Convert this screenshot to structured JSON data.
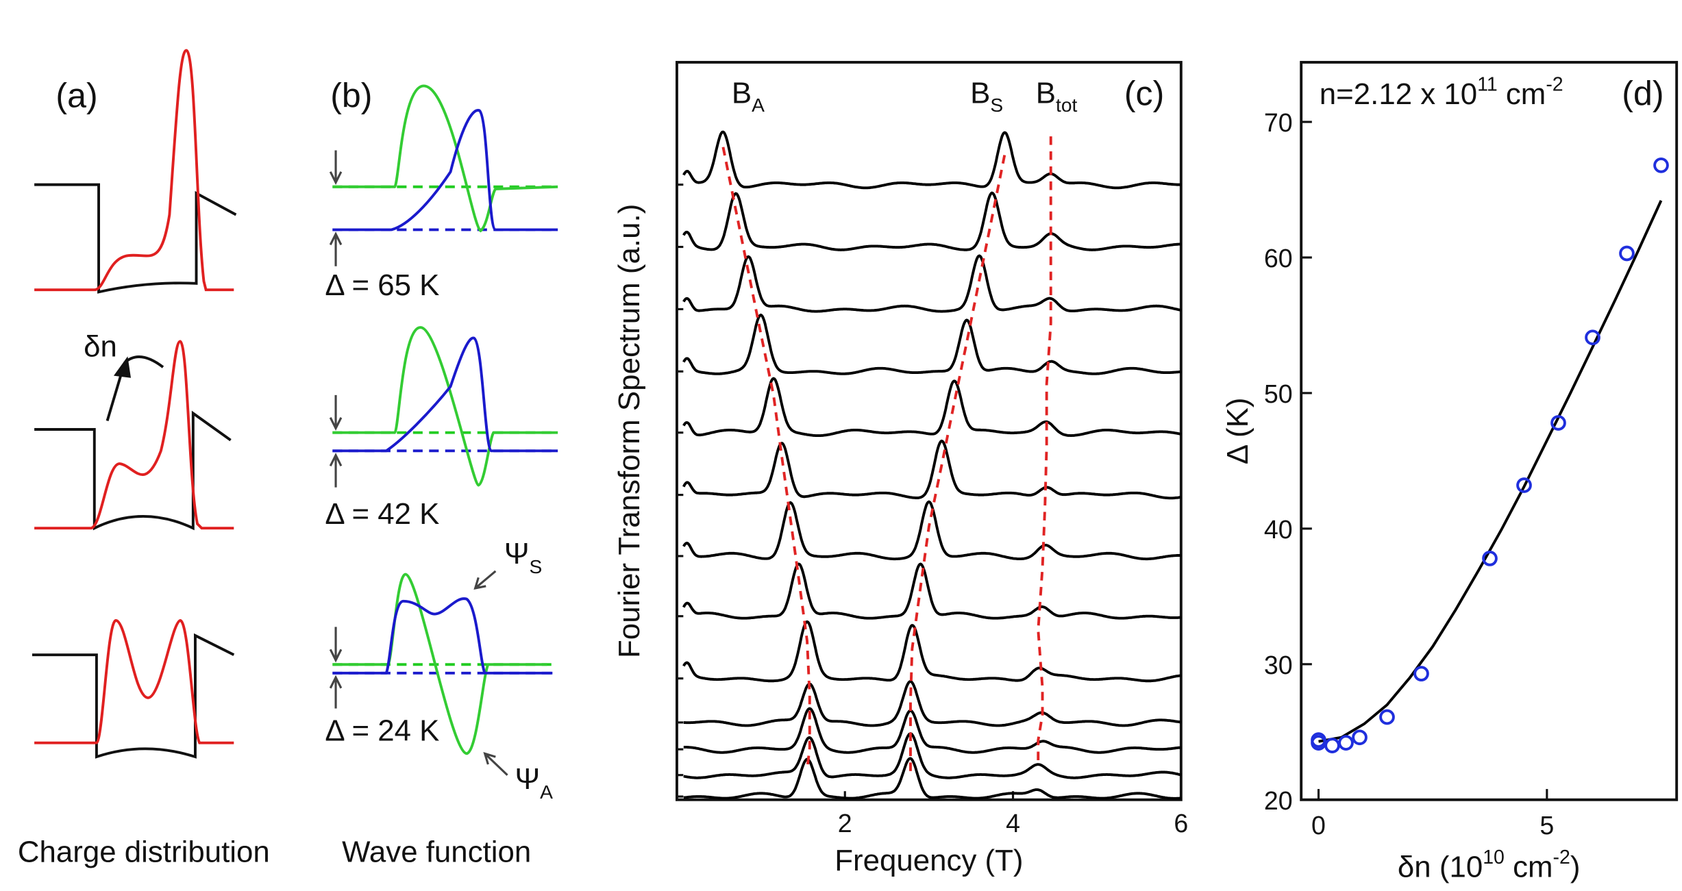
{
  "panel_a": {
    "label": "(a)",
    "caption": "Charge distribution",
    "annotation": "δn"
  },
  "panel_b": {
    "label": "(b)",
    "caption": "Wave function",
    "gaps": [
      "Δ = 65 K",
      "Δ = 42 K",
      "Δ = 24 K"
    ],
    "psi_s": {
      "text": "Ψ",
      "sub": "S"
    },
    "psi_a": {
      "text": "Ψ",
      "sub": "A"
    }
  },
  "chart_data": [
    {
      "type": "spectra",
      "panel_label": "(c)",
      "xlabel": "Frequency (T)",
      "ylabel": "Fourier Transform Spectrum (a.u.)",
      "xlim": [
        0,
        6
      ],
      "xticks": [
        2,
        4,
        6
      ],
      "trace_color": "#000000",
      "series": [
        {
          "name": "B",
          "sub": "A",
          "color": "#e02424",
          "values": [
            0.55,
            0.7,
            0.85,
            1.0,
            1.15,
            1.25,
            1.35,
            1.45,
            1.55,
            1.58,
            1.58,
            1.58,
            1.55
          ]
        },
        {
          "name": "B",
          "sub": "S",
          "color": "#e02424",
          "values": [
            3.9,
            3.75,
            3.6,
            3.45,
            3.3,
            3.15,
            3.0,
            2.9,
            2.8,
            2.78,
            2.78,
            2.78,
            2.78
          ]
        },
        {
          "name": "B",
          "sub": "tot",
          "color": "#e02424",
          "values": [
            4.45,
            4.45,
            4.45,
            4.45,
            4.4,
            4.4,
            4.38,
            4.35,
            4.3,
            4.35,
            4.35,
            4.3,
            4.3
          ]
        }
      ]
    },
    {
      "type": "scatter",
      "panel_label": "(d)",
      "title": [
        {
          "text": "n=2.12 x 10"
        },
        {
          "sup": "11"
        },
        {
          "text": " cm"
        },
        {
          "sup": "-2"
        }
      ],
      "xlabel": [
        {
          "text": "δn (10"
        },
        {
          "sup": "10"
        },
        {
          "text": " cm"
        },
        {
          "sup": "-2"
        },
        {
          "text": ")"
        }
      ],
      "ylabel": "Δ (K)",
      "xlim": [
        -0.38,
        7.84
      ],
      "ylim": [
        20,
        74.4
      ],
      "xticks": [
        0,
        5
      ],
      "yticks": [
        20,
        30,
        40,
        50,
        60,
        70
      ],
      "color": "#1f2fdd",
      "x": [
        0,
        0,
        0.3,
        0.6,
        0.9,
        1.5,
        2.25,
        3.75,
        4.5,
        5.25,
        6.0,
        6.75,
        7.5
      ],
      "values": [
        24.4,
        24.2,
        24.0,
        24.2,
        24.6,
        26.1,
        29.3,
        37.8,
        43.2,
        47.8,
        54.1,
        60.3,
        66.8
      ],
      "fit": {
        "color": "#000000",
        "x": [
          0,
          0.5,
          1,
          1.5,
          2,
          2.5,
          3,
          3.5,
          4,
          4.5,
          5,
          5.5,
          6,
          6.5,
          7,
          7.5
        ],
        "values": [
          24.3,
          24.6,
          25.6,
          27.0,
          29.0,
          31.3,
          34.0,
          36.9,
          39.9,
          43.1,
          46.5,
          49.9,
          53.4,
          56.9,
          60.5,
          64.2
        ]
      }
    }
  ]
}
